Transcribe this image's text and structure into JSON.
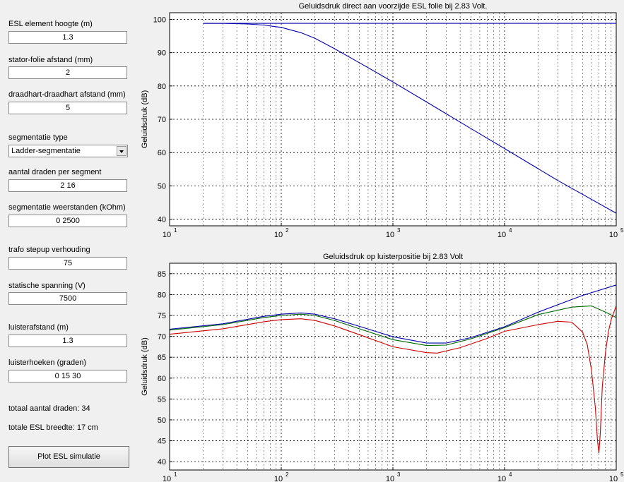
{
  "params": {
    "element_height_label": "ESL element hoogte (m)",
    "element_height_value": "1.3",
    "stator_gap_label": "stator-folie afstand (mm)",
    "stator_gap_value": "2",
    "wire_pitch_label": "draadhart-draadhart afstand (mm)",
    "wire_pitch_value": "5",
    "segmentation_type_label": "segmentatie type",
    "segmentation_type_value": "Ladder-segmentatie",
    "wires_per_segment_label": "aantal draden per segment",
    "wires_per_segment_value": "2 16",
    "segment_resistors_label": "segmentatie weerstanden (kOhm)",
    "segment_resistors_value": "0 2500",
    "transformer_ratio_label": "trafo stepup verhouding",
    "transformer_ratio_value": "75",
    "bias_voltage_label": "statische spanning (V)",
    "bias_voltage_value": "7500",
    "listen_distance_label": "luisterafstand (m)",
    "listen_distance_value": "1.3",
    "listen_angles_label": "luisterhoeken (graden)",
    "listen_angles_value": "0 15 30"
  },
  "summary": {
    "total_wires": "totaal aantal draden: 34",
    "total_width": "totale ESL breedte: 17 cm"
  },
  "plot_button_label": "Plot ESL simulatie",
  "colors": {
    "series_0deg": "#0000aa",
    "series_15deg": "#006400",
    "series_30deg": "#cc0000",
    "flat_line": "#0000aa"
  },
  "chart_data": [
    {
      "type": "line",
      "title": "Geluidsdruk direct aan voorzijde ESL folie bij 2.83 Volt.",
      "xlabel": "",
      "ylabel": "Geluidsdruk (dB)",
      "x_scale": "log",
      "xlim": [
        10,
        100000
      ],
      "ylim": [
        38,
        102
      ],
      "yticks": [
        40,
        50,
        60,
        70,
        80,
        90,
        100
      ],
      "xtick_labels": [
        "10",
        "10",
        "10",
        "10",
        "10"
      ],
      "xtick_exponents": [
        "1",
        "2",
        "3",
        "4",
        "5"
      ],
      "grid": "on",
      "series": [
        {
          "x": [
            20,
            100000
          ],
          "y": [
            98.8,
            98.8
          ]
        },
        {
          "x": [
            20,
            30,
            50,
            70,
            100,
            150,
            200,
            300,
            500,
            700,
            1000,
            2000,
            5000,
            10000,
            30000,
            100000
          ],
          "y": [
            98.8,
            98.8,
            98.6,
            98.3,
            97.6,
            96,
            94.3,
            91.2,
            87,
            84.2,
            81.2,
            75.2,
            67.2,
            61.2,
            51.6,
            41.8
          ]
        }
      ]
    },
    {
      "type": "line",
      "title": "Geluidsdruk op luisterpositie bij 2.83 Volt",
      "xlabel": "",
      "ylabel": "Geluidsdruk (dB)",
      "x_scale": "log",
      "xlim": [
        10,
        100000
      ],
      "ylim": [
        38,
        87.5
      ],
      "yticks": [
        40,
        45,
        50,
        55,
        60,
        65,
        70,
        75,
        80,
        85
      ],
      "xtick_labels": [
        "10",
        "10",
        "10",
        "10",
        "10"
      ],
      "xtick_exponents": [
        "1",
        "2",
        "3",
        "4",
        "5"
      ],
      "grid": "on",
      "series": [
        {
          "x": [
            10,
            30,
            70,
            100,
            150,
            200,
            300,
            500,
            1000,
            2000,
            3000,
            5000,
            10000,
            20000,
            50000,
            100000
          ],
          "y": [
            71.7,
            73,
            74.8,
            75.3,
            75.6,
            75.3,
            74.2,
            72.4,
            69.9,
            68.4,
            68.4,
            69.7,
            72.3,
            75.8,
            79.8,
            82.3
          ]
        },
        {
          "x": [
            10,
            30,
            70,
            100,
            150,
            200,
            300,
            500,
            1000,
            2000,
            3000,
            5000,
            10000,
            20000,
            40000,
            60000,
            80000,
            100000
          ],
          "y": [
            71.5,
            72.8,
            74.5,
            75,
            75.3,
            75,
            73.8,
            71.8,
            69.2,
            67.8,
            67.9,
            69.4,
            72.1,
            75.2,
            77,
            77.3,
            75.8,
            74.5
          ]
        },
        {
          "x": [
            10,
            30,
            70,
            100,
            150,
            200,
            300,
            500,
            1000,
            2000,
            2500,
            4000,
            7000,
            10000,
            20000,
            30000,
            40000,
            50000,
            55000,
            60000,
            65000,
            68000,
            70000,
            72000,
            75000,
            80000,
            85000,
            90000,
            100000
          ],
          "y": [
            70.5,
            71.8,
            73.5,
            74,
            74.2,
            73.8,
            72.5,
            70.4,
            67.5,
            66.1,
            66,
            67.3,
            69.5,
            71.2,
            72.8,
            73.6,
            73.4,
            71,
            68,
            62,
            53,
            45,
            42,
            47,
            58,
            66,
            71,
            74,
            77.3
          ]
        }
      ]
    }
  ]
}
